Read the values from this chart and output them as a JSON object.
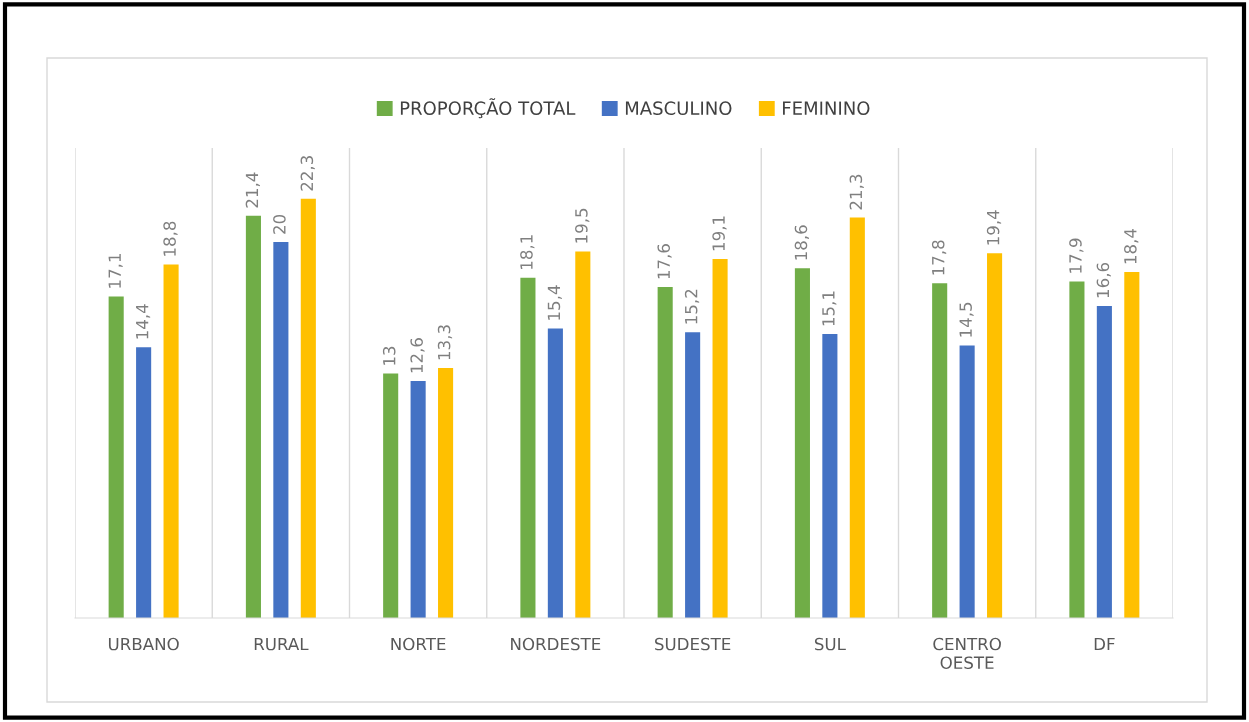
{
  "chart_data": {
    "type": "bar",
    "categories": [
      "URBANO",
      "RURAL",
      "NORTE",
      "NORDESTE",
      "SUDESTE",
      "SUL",
      "CENTRO\nOESTE",
      "DF"
    ],
    "series": [
      {
        "name": "PROPORÇÃO TOTAL",
        "color": "#70ad47",
        "values": [
          17.1,
          21.4,
          13,
          18.1,
          17.6,
          18.6,
          17.8,
          17.9
        ],
        "value_labels": [
          "17,1",
          "21,4",
          "13",
          "18,1",
          "17,6",
          "18,6",
          "17,8",
          "17,9"
        ]
      },
      {
        "name": "MASCULINO",
        "color": "#4472c4",
        "values": [
          14.4,
          20,
          12.6,
          15.4,
          15.2,
          15.1,
          14.5,
          16.6
        ],
        "value_labels": [
          "14,4",
          "20",
          "12,6",
          "15,4",
          "15,2",
          "15,1",
          "14,5",
          "16,6"
        ]
      },
      {
        "name": "FEMININO",
        "color": "#ffc000",
        "values": [
          18.8,
          22.3,
          13.3,
          19.5,
          19.1,
          21.3,
          19.4,
          18.4
        ],
        "value_labels": [
          "18,8",
          "22,3",
          "13,3",
          "19,5",
          "19,1",
          "21,3",
          "19,4",
          "18,4"
        ]
      }
    ],
    "ylim": [
      0,
      25
    ],
    "tick_labels": "x",
    "grid": "x",
    "legend": "top"
  }
}
